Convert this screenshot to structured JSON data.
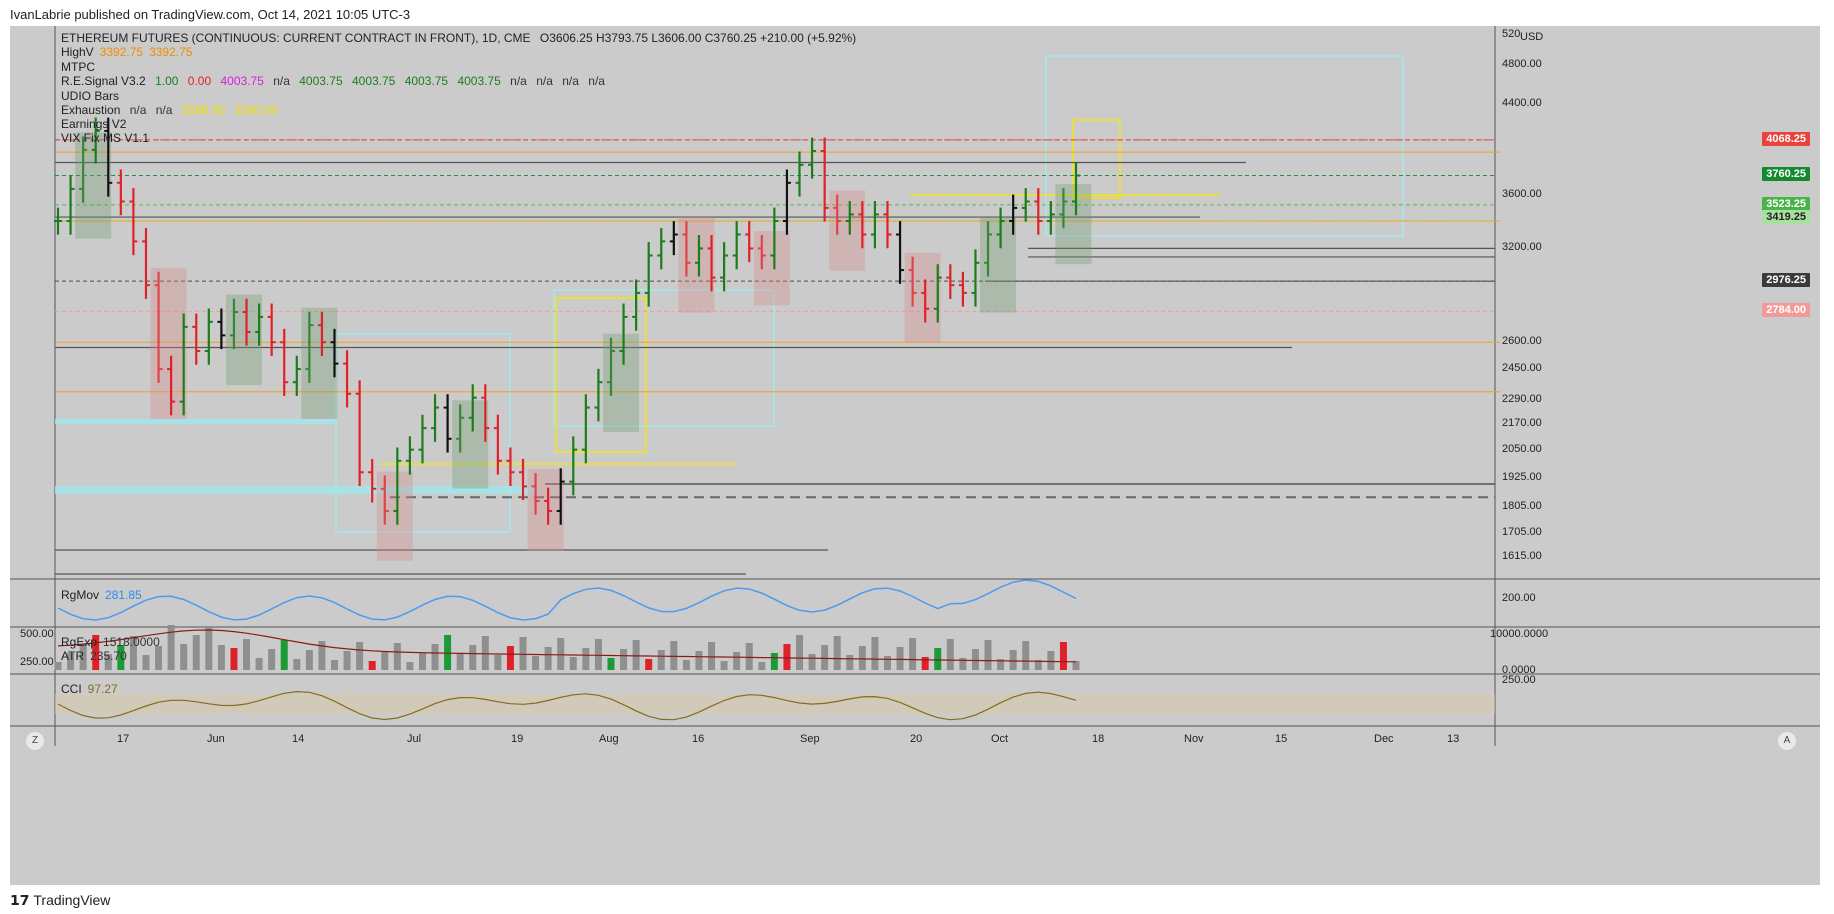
{
  "header": {
    "published": "IvanLabrie published on TradingView.com, Oct 14, 2021 10:05 UTC-3"
  },
  "legend": {
    "symbol": "ETHEREUM FUTURES (CONTINUOUS: CURRENT CONTRACT IN FRONT), 1D, CME",
    "ohlc": "O3606.25  H3793.75  L3606.00  C3760.25  +210.00 (+5.92%)",
    "highv_label": "HighV",
    "highv_v1": "3392.75",
    "highv_v2": "3392.75",
    "mtpc": "MTPC",
    "re_signal_label": "R.E.Signal V3.2",
    "re_signal_vals": [
      "1.00",
      "0.00",
      "4003.75",
      "n/a",
      "4003.75",
      "4003.75",
      "4003.75",
      "4003.75",
      "n/a",
      "n/a",
      "n/a",
      "n/a"
    ],
    "udio": "UDIO Bars",
    "exhaustion_label": "Exhaustion",
    "exhaustion_vals": [
      "n/a",
      "n/a",
      "3590.00",
      "3590.00"
    ],
    "earnings": "Earnings V2",
    "vix": "VIX Fix MS V1.1",
    "regmov_label": "RgMov",
    "regmov_val": "281.85",
    "regexp_label": "RgExp",
    "regexp_val": "1518.0000",
    "atr_label": "ATR",
    "atr_val": "235.70",
    "cci_label": "CCI",
    "cci_val": "97.27"
  },
  "price_tags": [
    {
      "text": "4068.25",
      "price": 4068.25,
      "color": "#e8433c"
    },
    {
      "text": "3760.25",
      "price": 3760.25,
      "color": "#138a2e"
    },
    {
      "text": "3523.25",
      "price": 3523.25,
      "color": "#48b448"
    },
    {
      "text": "3419.25",
      "price": 3419.25,
      "color": "#a8e0a0"
    },
    {
      "text": "2976.25",
      "price": 2976.25,
      "color": "#3b3b3b"
    },
    {
      "text": "2784.00",
      "price": 2784.0,
      "color": "#f29a9a"
    }
  ],
  "y_axis": {
    "unit": "USD",
    "top_label": "520",
    "ticks": [
      "4800.00",
      "4400.00",
      "3600.00",
      "3200.00",
      "2600.00",
      "2450.00",
      "2290.00",
      "2170.00",
      "2050.00",
      "1925.00",
      "1805.00",
      "1705.00",
      "1615.00"
    ]
  },
  "panes": {
    "regmov_ticks": [
      "200.00"
    ],
    "volume_left_ticks": [
      "500.00",
      "250.00"
    ],
    "volume_right_ticks": [
      "10000.0000",
      "0.0000"
    ],
    "cci_ticks": [
      "250.00"
    ]
  },
  "x_axis": {
    "labels": [
      "17",
      "Jun",
      "14",
      "Jul",
      "19",
      "Aug",
      "16",
      "Sep",
      "20",
      "Oct",
      "18",
      "Nov",
      "15",
      "Dec",
      "13"
    ]
  },
  "footer": {
    "logo": "TradingView",
    "btn_left": "Z",
    "btn_right": "A"
  },
  "colors": {
    "up": "#1b7d1b",
    "down": "#e0212a",
    "bg": "#cbcbcb",
    "cyan": "#a6e8ee",
    "yellow": "#f5e60d",
    "orange": "#f2a020"
  },
  "chart_data": {
    "type": "candlestick",
    "title": "ETHEREUM FUTURES (CONTINUOUS: CURRENT CONTRACT IN FRONT), 1D, CME",
    "x_range": [
      "2021-05-07",
      "2021-12-17"
    ],
    "price_range": [
      1550,
      5200
    ],
    "horizontal_levels": [
      4068.25,
      3760.25,
      3523.25,
      3419.25,
      3392.75,
      2976.25,
      2784.0,
      2590.0,
      2350.0,
      1845.0
    ],
    "close_path": [
      3400,
      3650,
      3980,
      4150,
      3700,
      3550,
      3250,
      2950,
      2450,
      2280,
      2690,
      2550,
      2720,
      2640,
      2780,
      2660,
      2750,
      2600,
      2380,
      2450,
      2700,
      2600,
      2480,
      2320,
      1950,
      1880,
      1790,
      2000,
      2050,
      2150,
      2250,
      2100,
      2200,
      2300,
      2150,
      2000,
      1950,
      1890,
      1830,
      1790,
      1910,
      2050,
      2250,
      2380,
      2550,
      2750,
      2900,
      3150,
      3250,
      3300,
      3100,
      3200,
      3000,
      3150,
      3300,
      3200,
      3150,
      3400,
      3700,
      3850,
      3970,
      3500,
      3400,
      3450,
      3300,
      3450,
      3300,
      3050,
      2900,
      2800,
      3000,
      2950,
      2900,
      3100,
      3300,
      3400,
      3500,
      3550,
      3400,
      3450,
      3550,
      3760
    ]
  }
}
